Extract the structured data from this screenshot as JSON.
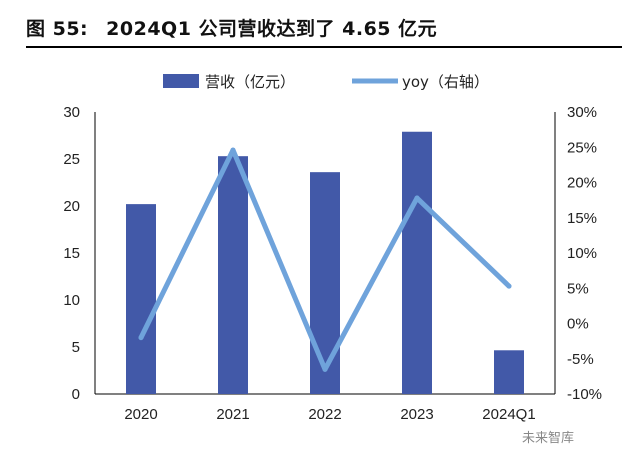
{
  "figure": {
    "label": "图 55:",
    "title": "2024Q1 公司营收达到了 4.65 亿元"
  },
  "chart_data": {
    "type": "bar+line",
    "categories": [
      "2020",
      "2021",
      "2022",
      "2023",
      "2024Q1"
    ],
    "series": [
      {
        "name": "营收（亿元）",
        "type": "bar",
        "axis": "left",
        "color": "#4259A8",
        "values": [
          20.2,
          25.3,
          23.6,
          27.9,
          4.65
        ]
      },
      {
        "name": "yoy（右轴）",
        "type": "line",
        "axis": "right",
        "color": "#6FA3DB",
        "values": [
          -2.0,
          24.6,
          -6.5,
          17.8,
          5.3
        ]
      }
    ],
    "left_axis": {
      "range": [
        0,
        30
      ],
      "ticks": [
        "0",
        "5",
        "10",
        "15",
        "20",
        "25",
        "30"
      ]
    },
    "right_axis": {
      "range": [
        -10,
        30
      ],
      "ticks": [
        "-10%",
        "-5%",
        "0%",
        "5%",
        "10%",
        "15%",
        "20%",
        "25%",
        "30%"
      ]
    },
    "legend": {
      "position": "top"
    }
  },
  "watermark": "未来智库"
}
